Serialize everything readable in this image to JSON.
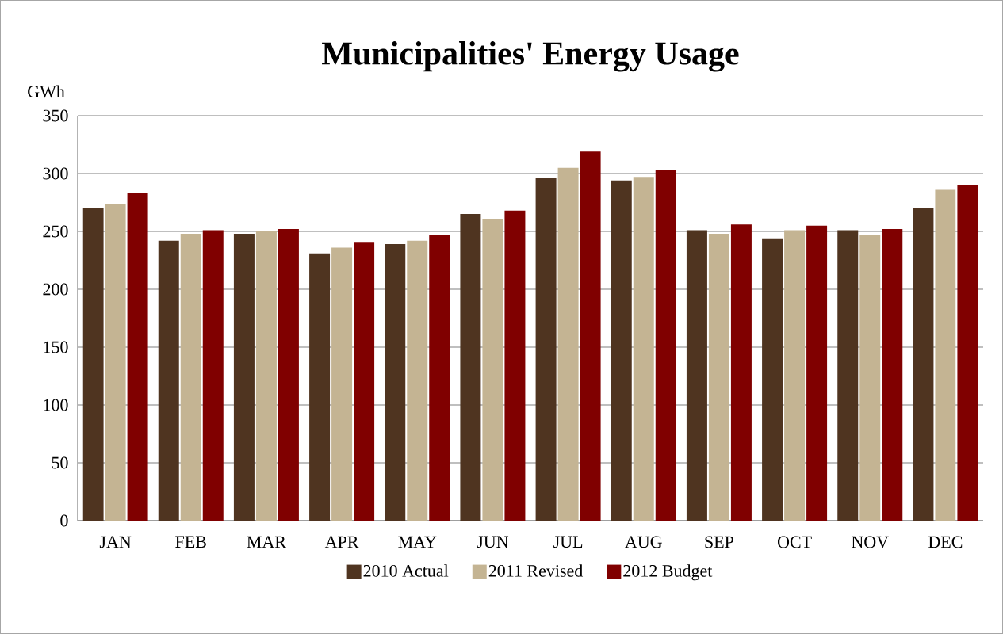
{
  "chart_data": {
    "type": "bar",
    "title": "Municipalities' Energy Usage",
    "ylabel": "GWh",
    "categories": [
      "JAN",
      "FEB",
      "MAR",
      "APR",
      "MAY",
      "JUN",
      "JUL",
      "AUG",
      "SEP",
      "OCT",
      "NOV",
      "DEC"
    ],
    "series": [
      {
        "name": "2010 Actual",
        "color": "#4f3420",
        "values": [
          270,
          242,
          248,
          231,
          239,
          265,
          296,
          294,
          251,
          244,
          251,
          270
        ]
      },
      {
        "name": "2011 Revised",
        "color": "#c4b493",
        "values": [
          274,
          248,
          250,
          236,
          242,
          261,
          305,
          297,
          248,
          251,
          247,
          286
        ]
      },
      {
        "name": "2012 Budget",
        "color": "#800000",
        "values": [
          283,
          251,
          252,
          241,
          247,
          268,
          319,
          303,
          256,
          255,
          252,
          290
        ]
      }
    ],
    "ylim": [
      0,
      350
    ],
    "yticks": [
      0,
      50,
      100,
      150,
      200,
      250,
      300,
      350
    ],
    "grid": "y",
    "legend": "bottom"
  }
}
